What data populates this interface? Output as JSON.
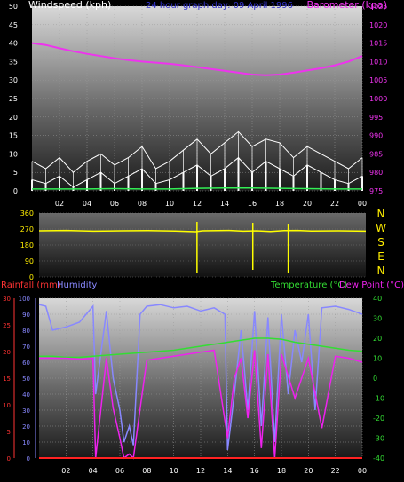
{
  "colors": {
    "background": "#000000",
    "wind_speed": "#ffffff",
    "wind_gust": "#ffffff",
    "wind_avg": "#33ee55",
    "barometer": "#ee33ee",
    "direction": "#ffff00",
    "rainfall": "#ff2222",
    "humidity": "#8888ff",
    "temperature": "#33dd33",
    "dewpoint": "#ee22ee",
    "dir_labels": "#ffee00"
  },
  "chart_data": [
    {
      "id": "wind",
      "type": "line",
      "title": "24 hour graph day:  09 April 1996",
      "ylabel_left": "Windspeed (kph)",
      "ylabel_right": "Barometer (kpa)",
      "xticks": [
        "02",
        "04",
        "06",
        "08",
        "10",
        "12",
        "14",
        "16",
        "18",
        "20",
        "22",
        "00"
      ],
      "x_range": [
        0,
        24
      ],
      "y_left_range": [
        0,
        50
      ],
      "y_left_ticks": [
        "0",
        "5",
        "10",
        "15",
        "20",
        "25",
        "30",
        "35",
        "40",
        "45",
        "50"
      ],
      "y_right_range": [
        975,
        1025
      ],
      "y_right_ticks": [
        "975",
        "980",
        "985",
        "990",
        "995",
        "1000",
        "1005",
        "1010",
        "1015",
        "1020",
        "1025"
      ],
      "grid": true,
      "series": [
        {
          "series_key": "barometer",
          "axis": "right",
          "x": [
            0,
            1,
            2,
            3,
            4,
            5,
            6,
            7,
            8,
            9,
            10,
            11,
            12,
            13,
            14,
            15,
            16,
            17,
            18,
            19,
            20,
            21,
            22,
            23,
            24
          ],
          "values": [
            1015,
            1014.5,
            1013.6,
            1012.8,
            1012.1,
            1011.5,
            1010.9,
            1010.4,
            1010,
            1009.7,
            1009.4,
            1009,
            1008.5,
            1008,
            1007.5,
            1007,
            1006.5,
            1006.3,
            1006.5,
            1007,
            1007.6,
            1008.2,
            1009,
            1010,
            1011.5
          ]
        },
        {
          "series_key": "wind_speed",
          "axis": "left",
          "x": [
            0,
            1,
            2,
            3,
            4,
            5,
            6,
            7,
            8,
            9,
            10,
            11,
            12,
            13,
            14,
            15,
            16,
            17,
            18,
            19,
            20,
            21,
            22,
            23,
            24
          ],
          "values": [
            3,
            2,
            4,
            1,
            3,
            5,
            2,
            4,
            6,
            2,
            3,
            5,
            7,
            4,
            6,
            9,
            5,
            8,
            6,
            4,
            7,
            5,
            3,
            2,
            4
          ]
        },
        {
          "series_key": "wind_gust",
          "axis": "left",
          "x": [
            0,
            1,
            2,
            3,
            4,
            5,
            6,
            7,
            8,
            9,
            10,
            11,
            12,
            13,
            14,
            15,
            16,
            17,
            18,
            19,
            20,
            21,
            22,
            23,
            24
          ],
          "values": [
            8,
            6,
            9,
            5,
            8,
            10,
            7,
            9,
            12,
            6,
            8,
            11,
            14,
            10,
            13,
            16,
            12,
            14,
            13,
            9,
            12,
            10,
            8,
            6,
            9
          ]
        },
        {
          "series_key": "wind_avg",
          "axis": "left",
          "x": [
            0,
            2,
            4,
            6,
            8,
            10,
            12,
            14,
            16,
            18,
            20,
            22,
            24
          ],
          "values": [
            0.5,
            0.5,
            0.5,
            0.6,
            0.5,
            0.5,
            0.7,
            0.8,
            0.8,
            0.7,
            0.6,
            0.5,
            0.5
          ]
        }
      ]
    },
    {
      "id": "direction",
      "type": "line",
      "y_range": [
        0,
        360
      ],
      "y_ticks": [
        "0",
        "90",
        "180",
        "270",
        "360"
      ],
      "tick_values": [
        0,
        90,
        180,
        270,
        360
      ],
      "compass_labels": [
        "N",
        "W",
        "S",
        "E",
        "N"
      ],
      "x_range": [
        0,
        24
      ],
      "series": [
        {
          "series_key": "direction",
          "x": [
            0,
            2,
            4,
            6,
            8,
            10,
            11.5,
            12,
            14,
            15,
            16,
            17,
            18,
            19,
            20,
            22,
            24
          ],
          "values": [
            260,
            262,
            258,
            260,
            261,
            259,
            255,
            260,
            262,
            258,
            260,
            256,
            261,
            262,
            259,
            260,
            258
          ]
        }
      ],
      "spikes": [
        {
          "x": 11.6,
          "values": [
            20,
            310
          ]
        },
        {
          "x": 15.7,
          "values": [
            40,
            305
          ]
        },
        {
          "x": 18.3,
          "values": [
            25,
            300
          ]
        }
      ]
    },
    {
      "id": "temp",
      "type": "line",
      "ylabel_left_1": "Rainfall (mm)",
      "ylabel_left_2": "Humidity",
      "ylabel_right_1": "Temperature (°C)",
      "ylabel_right_2": "Dew Point (°C)",
      "xticks": [
        "02",
        "04",
        "06",
        "08",
        "10",
        "12",
        "14",
        "16",
        "18",
        "20",
        "22",
        "00"
      ],
      "x_range": [
        0,
        24
      ],
      "y_rain_range": [
        0,
        30
      ],
      "y_rain_ticks": [
        "0",
        "5",
        "10",
        "15",
        "20",
        "25",
        "30"
      ],
      "y_hum_range": [
        0,
        100
      ],
      "y_hum_ticks": [
        "0",
        "10",
        "20",
        "30",
        "40",
        "50",
        "60",
        "70",
        "80",
        "90",
        "100"
      ],
      "y_temp_range": [
        -40,
        40
      ],
      "y_temp_ticks": [
        "-40",
        "-30",
        "-20",
        "-10",
        "0",
        "10",
        "20",
        "30",
        "40"
      ],
      "grid": true,
      "series": [
        {
          "series_key": "humidity",
          "axis": "hum",
          "x": [
            0,
            0.5,
            1,
            2,
            3,
            4,
            4.2,
            5,
            5.5,
            6,
            6.3,
            6.7,
            7,
            7.5,
            8,
            9,
            10,
            11,
            12,
            13,
            13.8,
            14,
            14.5,
            15,
            15.5,
            16,
            16.5,
            17,
            17.5,
            18,
            18.5,
            19,
            19.5,
            20,
            20.5,
            21,
            22,
            23,
            24
          ],
          "values": [
            96,
            95,
            80,
            82,
            85,
            95,
            40,
            92,
            50,
            30,
            10,
            20,
            8,
            90,
            95,
            96,
            94,
            95,
            92,
            94,
            90,
            5,
            40,
            80,
            30,
            92,
            20,
            88,
            10,
            90,
            40,
            80,
            60,
            90,
            30,
            94,
            95,
            93,
            90
          ]
        },
        {
          "series_key": "temperature",
          "axis": "temp",
          "x": [
            0,
            1,
            2,
            3,
            4,
            5,
            6,
            7,
            8,
            9,
            10,
            11,
            12,
            13,
            14,
            15,
            16,
            17,
            18,
            19,
            20,
            21,
            22,
            23,
            24
          ],
          "values": [
            11,
            11,
            10.5,
            10.5,
            11,
            11.5,
            12,
            12.5,
            13,
            13.5,
            14,
            15,
            16,
            17,
            18,
            19,
            20,
            20,
            19.5,
            18,
            17,
            16,
            15,
            14,
            13.5
          ]
        },
        {
          "series_key": "dewpoint",
          "axis": "temp",
          "x": [
            0,
            1,
            2,
            3,
            4,
            4.2,
            5,
            5.5,
            6,
            6.3,
            6.7,
            7,
            8,
            9,
            10,
            11,
            12,
            13,
            14,
            14.5,
            15,
            15.5,
            16,
            16.5,
            17,
            17.5,
            18,
            19,
            20,
            21,
            22,
            23,
            24
          ],
          "values": [
            10,
            10,
            10,
            9.5,
            10,
            -40,
            10,
            -15,
            -30,
            -40,
            -38,
            -40,
            9,
            10,
            11,
            12,
            13,
            14,
            -30,
            0,
            10,
            -20,
            14,
            -35,
            12,
            -40,
            12,
            -10,
            10,
            -25,
            11,
            10,
            8
          ]
        },
        {
          "series_key": "rainfall",
          "axis": "rain",
          "x": [
            0,
            24
          ],
          "values": [
            0,
            0
          ]
        }
      ]
    }
  ]
}
